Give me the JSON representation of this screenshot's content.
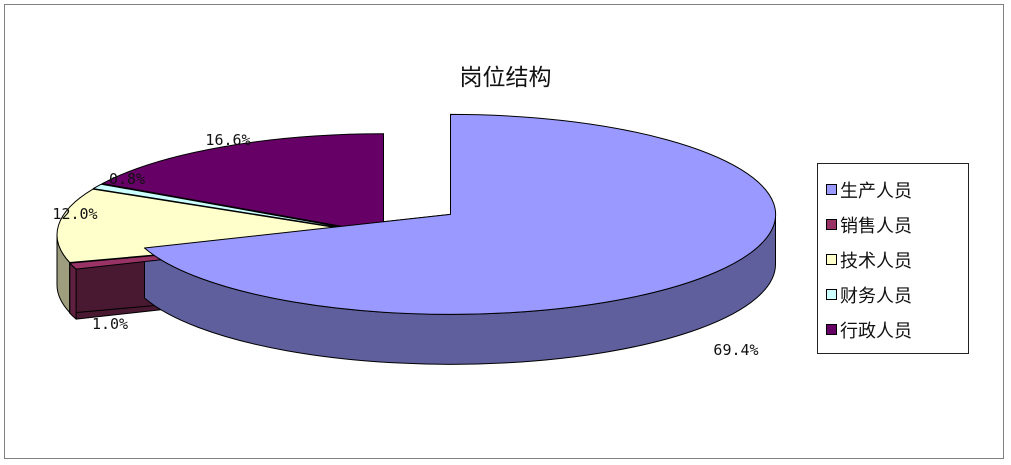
{
  "chart_data": {
    "type": "pie",
    "title": "岗位结构",
    "categories": [
      "生产人员",
      "销售人员",
      "技术人员",
      "财务人员",
      "行政人员"
    ],
    "values": [
      69.4,
      1.0,
      12.0,
      0.8,
      16.6
    ],
    "labels": [
      "69.4%",
      "1.0%",
      "12.0%",
      "0.8%",
      "16.6%"
    ],
    "colors": [
      "#9999ff",
      "#993366",
      "#ffffcc",
      "#ccffff",
      "#660066"
    ],
    "style": "3d-exploded",
    "legend_position": "right"
  }
}
